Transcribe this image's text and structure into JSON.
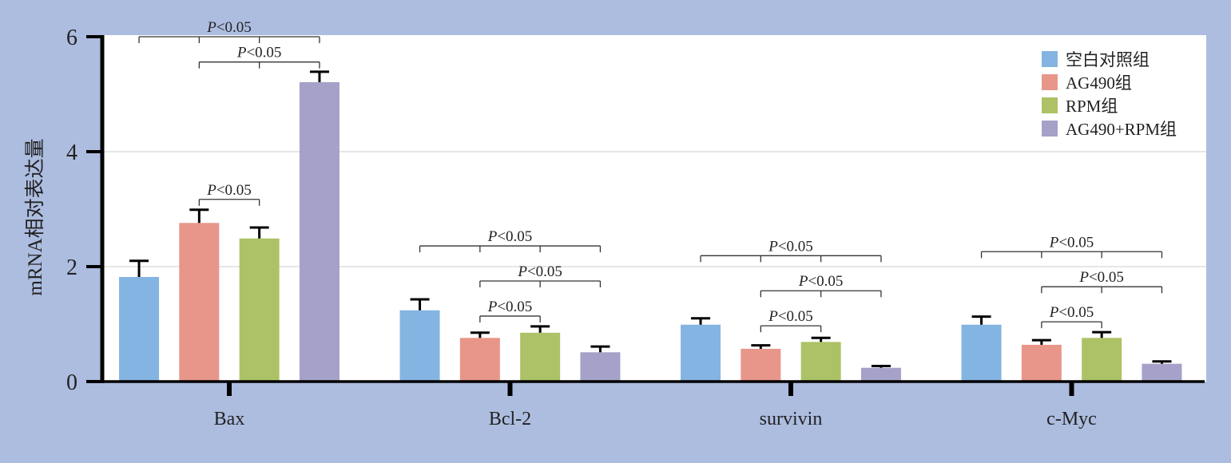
{
  "chart_data": {
    "type": "bar",
    "title": "",
    "xlabel": "",
    "ylabel": "mRNA相对表达量",
    "ylim": [
      0,
      6
    ],
    "yticks": [
      "0",
      "2",
      "4",
      "6"
    ],
    "grid": true,
    "legend_position": "top-right",
    "categories": [
      "Bax",
      "Bcl-2",
      "survivin",
      "c-Myc"
    ],
    "series": [
      {
        "name": "空白对照组",
        "color": "#84b4e1",
        "values": [
          1.82,
          1.24,
          0.99,
          0.99
        ],
        "errors": [
          0.28,
          0.19,
          0.11,
          0.14
        ]
      },
      {
        "name": "AG490组",
        "color": "#e8968a",
        "values": [
          2.76,
          0.76,
          0.57,
          0.64
        ],
        "errors": [
          0.23,
          0.09,
          0.06,
          0.08
        ]
      },
      {
        "name": "RPM组",
        "color": "#adc266",
        "values": [
          2.49,
          0.85,
          0.69,
          0.76
        ],
        "errors": [
          0.19,
          0.11,
          0.07,
          0.1
        ]
      },
      {
        "name": "AG490+RPM组",
        "color": "#a5a1c8",
        "values": [
          5.21,
          0.51,
          0.24,
          0.31
        ],
        "errors": [
          0.18,
          0.1,
          0.03,
          0.04
        ]
      }
    ],
    "annotations": [
      {
        "category": 0,
        "from": 0,
        "to": 3,
        "level": 6.0,
        "text": "P<0.05"
      },
      {
        "category": 0,
        "from": 1,
        "to": 3,
        "level": 5.56,
        "text": "P<0.05"
      },
      {
        "category": 0,
        "from": 1,
        "to": 2,
        "level": 3.17,
        "text": "P<0.05"
      },
      {
        "category": 1,
        "from": 0,
        "to": 3,
        "level": 2.36,
        "text": "P<0.05"
      },
      {
        "category": 1,
        "from": 1,
        "to": 3,
        "level": 1.75,
        "text": "P<0.05"
      },
      {
        "category": 1,
        "from": 1,
        "to": 2,
        "level": 1.14,
        "text": "P<0.05"
      },
      {
        "category": 2,
        "from": 0,
        "to": 3,
        "level": 2.19,
        "text": "P<0.05"
      },
      {
        "category": 2,
        "from": 1,
        "to": 3,
        "level": 1.58,
        "text": "P<0.05"
      },
      {
        "category": 2,
        "from": 1,
        "to": 2,
        "level": 0.97,
        "text": "P<0.05"
      },
      {
        "category": 3,
        "from": 0,
        "to": 3,
        "level": 2.26,
        "text": "P<0.05"
      },
      {
        "category": 3,
        "from": 1,
        "to": 3,
        "level": 1.65,
        "text": "P<0.05"
      },
      {
        "category": 3,
        "from": 1,
        "to": 2,
        "level": 1.04,
        "text": "P<0.05"
      }
    ]
  }
}
